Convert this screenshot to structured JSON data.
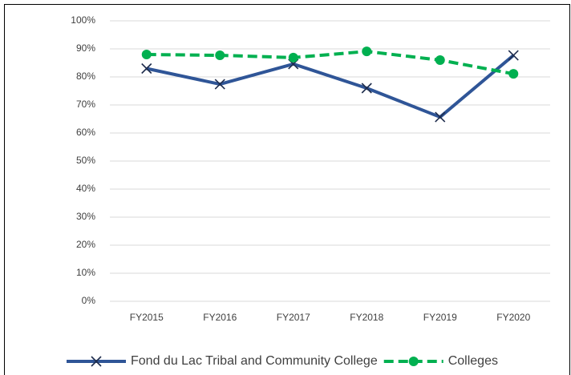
{
  "chart_data": {
    "type": "line",
    "categories": [
      "FY2015",
      "FY2016",
      "FY2017",
      "FY2018",
      "FY2019",
      "FY2020"
    ],
    "series": [
      {
        "name": "Fond du Lac Tribal and Community College",
        "color": "#2f5597",
        "values": [
          83,
          77.4,
          84.6,
          76,
          65.7,
          87.7
        ]
      },
      {
        "name": "Colleges",
        "color": "#00b050",
        "values": [
          88,
          87.7,
          86.9,
          89.1,
          86,
          81.1
        ]
      }
    ],
    "ylim": [
      0,
      100
    ],
    "yticks": [
      {
        "value": 0,
        "label": "0%"
      },
      {
        "value": 10,
        "label": "10%"
      },
      {
        "value": 20,
        "label": "20%"
      },
      {
        "value": 30,
        "label": "30%"
      },
      {
        "value": 40,
        "label": "40%"
      },
      {
        "value": 50,
        "label": "50%"
      },
      {
        "value": 60,
        "label": "60%"
      },
      {
        "value": 70,
        "label": "70%"
      },
      {
        "value": 80,
        "label": "80%"
      },
      {
        "value": 90,
        "label": "90%"
      },
      {
        "value": 100,
        "label": "100%"
      }
    ],
    "grid": true,
    "legend": "bottom"
  }
}
